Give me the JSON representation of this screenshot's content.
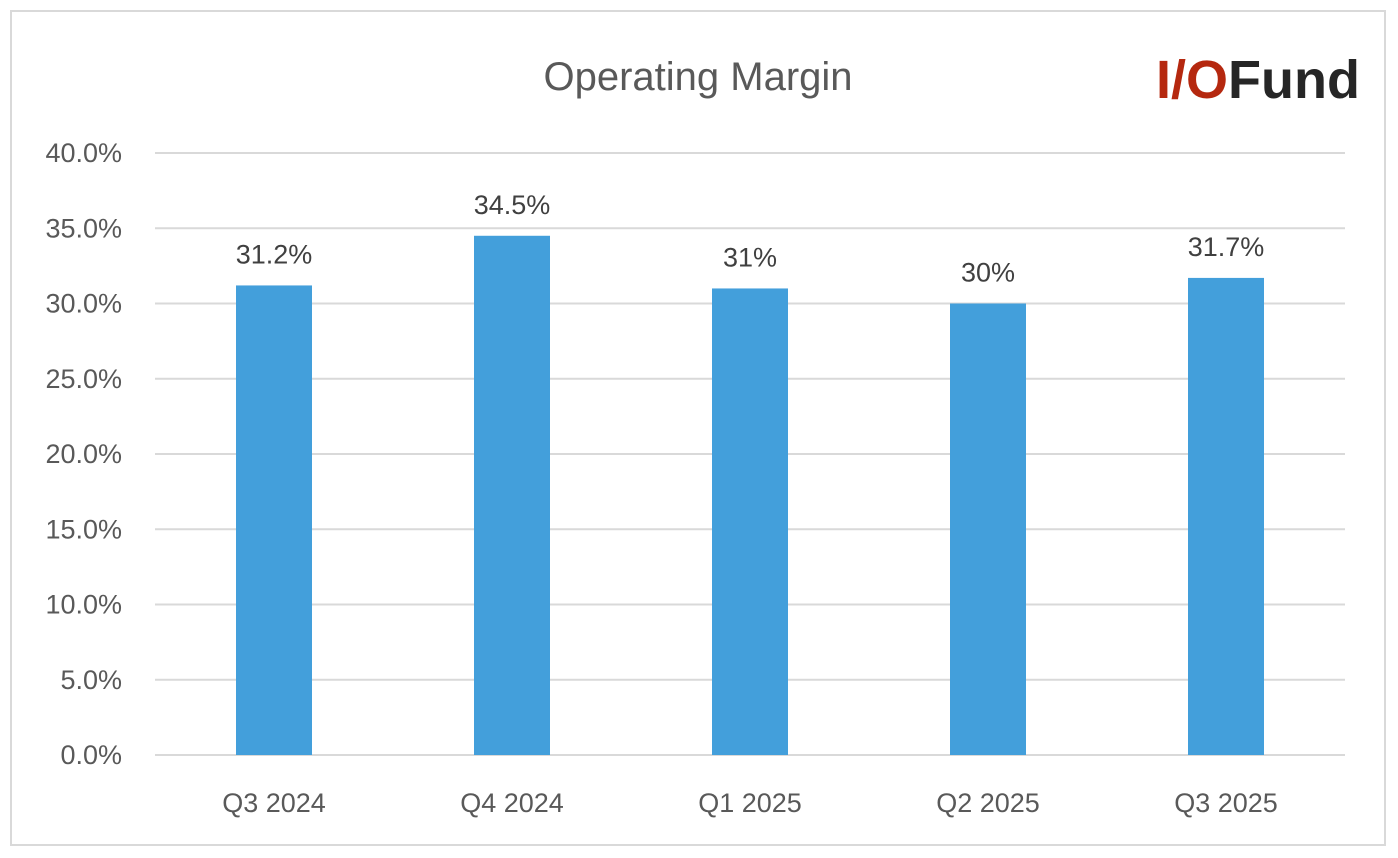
{
  "chart_data": {
    "type": "bar",
    "title": "Operating Margin",
    "categories": [
      "Q3 2024",
      "Q4 2024",
      "Q1 2025",
      "Q2 2025",
      "Q3 2025"
    ],
    "values": [
      31.2,
      34.5,
      31.0,
      30.0,
      31.7
    ],
    "data_labels": [
      "31.2%",
      "34.5%",
      "31%",
      "30%",
      "31.7%"
    ],
    "y_ticks": [
      "0.0%",
      "5.0%",
      "10.0%",
      "15.0%",
      "20.0%",
      "25.0%",
      "30.0%",
      "35.0%",
      "40.0%"
    ],
    "ylim": [
      0,
      40
    ],
    "y_step": 5,
    "xlabel": "",
    "ylabel": "",
    "grid": true,
    "bar_color": "#439FDB"
  },
  "logo": {
    "part1": "I/O",
    "part2": "Fund",
    "color1": "#B5280F",
    "color2": "#262626"
  }
}
